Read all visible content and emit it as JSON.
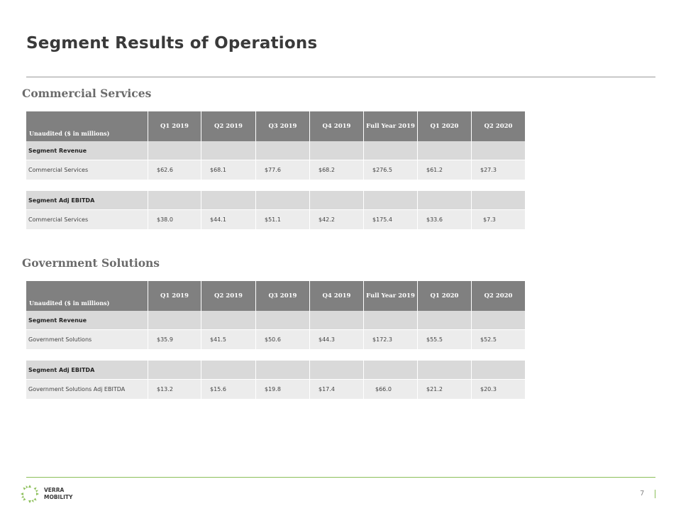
{
  "title": "Segment Results of Operations",
  "page_number": "7",
  "brand": {
    "line1": "VERRA",
    "line2": "MOBILITY"
  },
  "colors": {
    "accent": "#8cbf5a",
    "header_fill": "#808080",
    "subheader_fill": "#d9d9d9",
    "row_fill": "#ececec"
  },
  "columns": [
    "Q1 2019",
    "Q2 2019",
    "Q3 2019",
    "Q4 2019",
    "Full Year 2019",
    "Q1 2020",
    "Q2 2020"
  ],
  "header_label": "Unaudited ($ in millions)",
  "commercial": {
    "heading": "Commercial  Services",
    "revenue": {
      "label": "Segment Revenue",
      "row_label": "Commercial Services",
      "values": [
        "$62.6",
        "$68.1",
        "$77.6",
        "$68.2",
        "$276.5",
        "$61.2",
        "$27.3"
      ]
    },
    "ebitda": {
      "label": "Segment Adj EBITDA",
      "row_label": "Commercial Services",
      "values": [
        "$38.0",
        "$44.1",
        "$51.1",
        "$42.2",
        "$175.4",
        "$33.6",
        "$7.3"
      ]
    }
  },
  "government": {
    "heading": "Government Solutions",
    "revenue": {
      "label": "Segment Revenue",
      "row_label": "Government Solutions",
      "values": [
        "$35.9",
        "$41.5",
        "$50.6",
        "$44.3",
        "$172.3",
        "$55.5",
        "$52.5"
      ]
    },
    "ebitda": {
      "label": "Segment Adj EBITDA",
      "row_label": "Government Solutions  Adj  EBITDA",
      "values": [
        "$13.2",
        "$15.6",
        "$19.8",
        "$17.4",
        "$66.0",
        "$21.2",
        "$20.3"
      ]
    }
  }
}
